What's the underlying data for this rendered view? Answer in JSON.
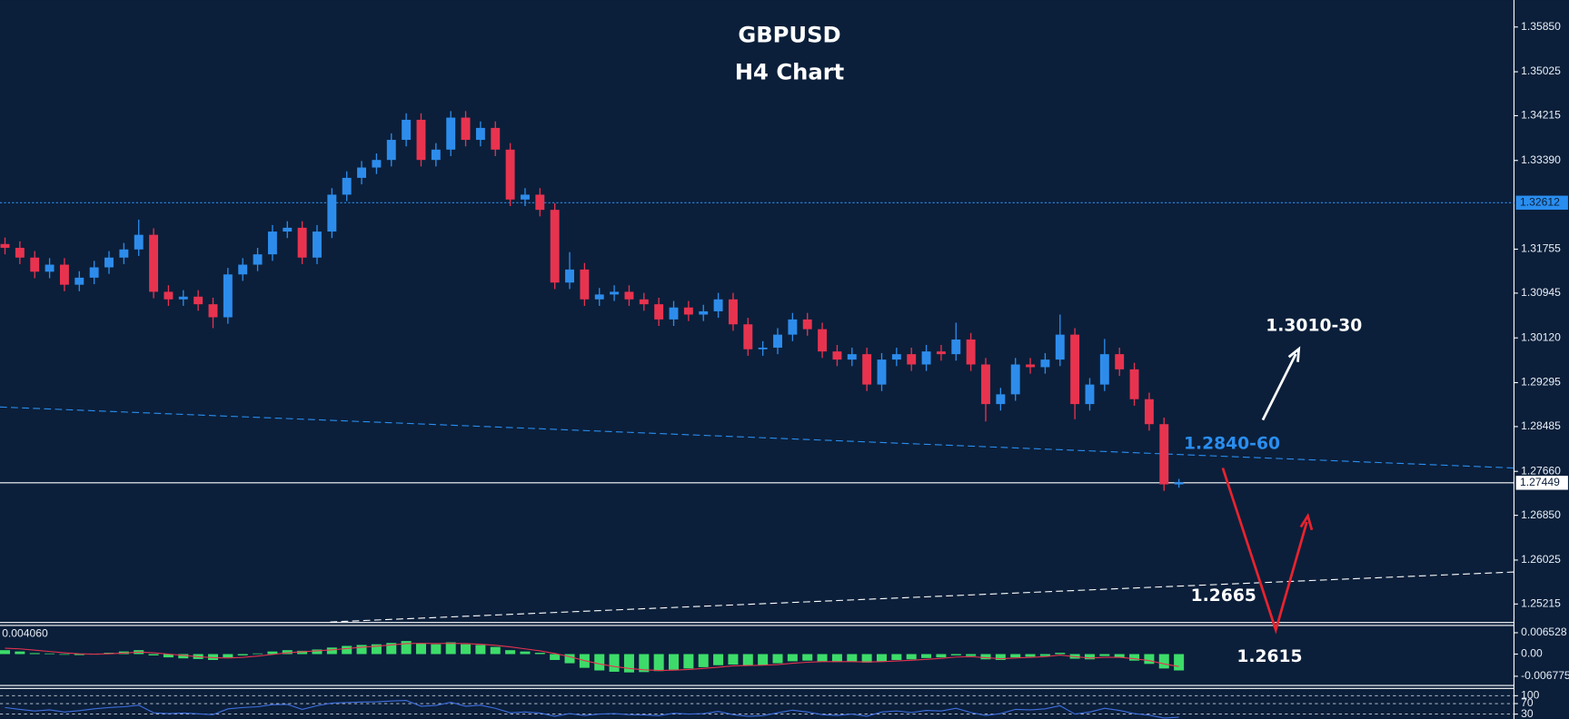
{
  "chart_data": [
    {
      "type": "candlestick",
      "title": "GBPUSD",
      "subtitle": "H4 Chart",
      "open": [
        1.3185,
        1.3178,
        1.316,
        1.3134,
        1.3147,
        1.311,
        1.3123,
        1.3142,
        1.316,
        1.3175,
        1.3202,
        1.3097,
        1.3083,
        1.3088,
        1.3074,
        1.305,
        1.3129,
        1.3147,
        1.3166,
        1.3208,
        1.3215,
        1.316,
        1.3208,
        1.3276,
        1.3307,
        1.3326,
        1.334,
        1.3377,
        1.3414,
        1.334,
        1.3359,
        1.3418,
        1.3377,
        1.3399,
        1.3359,
        1.3267,
        1.3276,
        1.3248,
        1.3114,
        1.3138,
        1.3083,
        1.3092,
        1.3097,
        1.3083,
        1.3074,
        1.3046,
        1.3068,
        1.3055,
        1.3061,
        1.3083,
        1.3037,
        1.2991,
        1.2994,
        1.3018,
        1.3046,
        1.3028,
        1.2987,
        1.2972,
        1.2982,
        1.2926,
        1.2972,
        1.2982,
        1.2963,
        1.2987,
        1.2982,
        1.3009,
        1.2963,
        1.289,
        1.2908,
        1.2963,
        1.2958,
        1.2972,
        1.3018,
        1.289,
        1.2926,
        1.2982,
        1.2954,
        1.2899,
        1.2853,
        1.2742
      ],
      "high": [
        1.3197,
        1.319,
        1.3172,
        1.3159,
        1.3159,
        1.3135,
        1.3154,
        1.3172,
        1.3187,
        1.323,
        1.3214,
        1.3109,
        1.31,
        1.31,
        1.3086,
        1.3141,
        1.3159,
        1.3178,
        1.322,
        1.3227,
        1.3227,
        1.322,
        1.3288,
        1.3319,
        1.3338,
        1.3352,
        1.3389,
        1.3426,
        1.3426,
        1.3371,
        1.343,
        1.343,
        1.3411,
        1.3411,
        1.3371,
        1.3288,
        1.3288,
        1.326,
        1.317,
        1.315,
        1.3104,
        1.3109,
        1.3109,
        1.3095,
        1.3086,
        1.308,
        1.308,
        1.3073,
        1.3095,
        1.3095,
        1.3049,
        1.3006,
        1.303,
        1.3058,
        1.3058,
        1.304,
        1.2999,
        1.2994,
        1.2994,
        1.2984,
        1.2994,
        1.2994,
        1.2999,
        1.2999,
        1.304,
        1.3021,
        1.2975,
        1.292,
        1.2975,
        1.2975,
        1.2984,
        1.3055,
        1.303,
        1.2938,
        1.301,
        1.2994,
        1.2966,
        1.2911,
        1.2865,
        1.2752
      ],
      "low": [
        1.3166,
        1.3148,
        1.3122,
        1.3122,
        1.3098,
        1.3098,
        1.3111,
        1.313,
        1.3148,
        1.3163,
        1.3085,
        1.3071,
        1.3071,
        1.3062,
        1.303,
        1.3038,
        1.3117,
        1.3135,
        1.3154,
        1.3196,
        1.3148,
        1.3148,
        1.3196,
        1.3264,
        1.3295,
        1.3314,
        1.3328,
        1.3365,
        1.3328,
        1.3328,
        1.3347,
        1.3365,
        1.3365,
        1.3347,
        1.3255,
        1.3255,
        1.3236,
        1.3102,
        1.3102,
        1.3071,
        1.3071,
        1.308,
        1.3071,
        1.3062,
        1.3034,
        1.3034,
        1.3043,
        1.3043,
        1.3049,
        1.3025,
        1.2979,
        1.2979,
        1.2982,
        1.3006,
        1.3016,
        1.2975,
        1.296,
        1.296,
        1.2914,
        1.2914,
        1.296,
        1.2951,
        1.2951,
        1.297,
        1.297,
        1.2951,
        1.2858,
        1.2878,
        1.2896,
        1.2946,
        1.2946,
        1.296,
        1.2862,
        1.2878,
        1.2914,
        1.2942,
        1.2887,
        1.2841,
        1.273,
        1.2736
      ],
      "close": [
        1.3178,
        1.316,
        1.3134,
        1.3147,
        1.311,
        1.3123,
        1.3142,
        1.316,
        1.3175,
        1.3202,
        1.3097,
        1.3083,
        1.3088,
        1.3074,
        1.305,
        1.3129,
        1.3147,
        1.3166,
        1.3208,
        1.3215,
        1.316,
        1.3208,
        1.3276,
        1.3307,
        1.3326,
        1.334,
        1.3377,
        1.3414,
        1.334,
        1.3359,
        1.3418,
        1.3377,
        1.3399,
        1.3359,
        1.3267,
        1.3276,
        1.3248,
        1.3114,
        1.3138,
        1.3083,
        1.3092,
        1.3097,
        1.3083,
        1.3074,
        1.3046,
        1.3068,
        1.3055,
        1.3061,
        1.3083,
        1.3037,
        1.2991,
        1.2994,
        1.3018,
        1.3046,
        1.3028,
        1.2987,
        1.2972,
        1.2982,
        1.2926,
        1.2972,
        1.2982,
        1.2963,
        1.2987,
        1.2982,
        1.3009,
        1.2963,
        1.289,
        1.2908,
        1.2963,
        1.2958,
        1.2972,
        1.3018,
        1.289,
        1.2926,
        1.2982,
        1.2954,
        1.2899,
        1.2853,
        1.2742,
        1.2746
      ],
      "up_color": "#2d8ceb",
      "down_color": "#e8334f",
      "ylim": [
        1.24884,
        1.36347
      ],
      "yticks": [
        {
          "value": 1.3585,
          "label": "1.35850"
        },
        1.35025,
        1.34215,
        {
          "value": 1.3339,
          "label": "1.33390"
        },
        1.31755,
        1.30945,
        {
          "value": 1.3012,
          "label": "1.30120"
        },
        1.29295,
        1.28485,
        {
          "value": 1.2766,
          "label": "1.27660"
        },
        {
          "value": 1.2685,
          "label": "1.26850"
        },
        1.26025,
        1.25215
      ],
      "levels": [
        {
          "value": 1.32612,
          "color": "#2a8ef0"
        },
        {
          "value": 1.27449,
          "color": "#ffffff"
        }
      ],
      "annotations": [
        {
          "text": "1.3010-30",
          "color": "#ffffff"
        },
        {
          "text": "1.2840-60",
          "color": "#2a8ef0"
        },
        {
          "text": "1.2665",
          "color": "#ffffff"
        },
        {
          "text": "1.2615",
          "color": "#ffffff"
        }
      ]
    },
    {
      "type": "macd",
      "readout": "0.004060",
      "histogram": {
        "color": "#3ddc6a",
        "values": [
          0.0012,
          0.0008,
          0.0003,
          0.0002,
          -0.0002,
          -0.0003,
          0.0,
          0.0004,
          0.0008,
          0.0012,
          -0.0004,
          -0.001,
          -0.0013,
          -0.0015,
          -0.0018,
          -0.001,
          -0.0004,
          0.0002,
          0.0008,
          0.0012,
          0.001,
          0.0014,
          0.002,
          0.0025,
          0.0028,
          0.003,
          0.0034,
          0.004,
          0.0032,
          0.003,
          0.0036,
          0.003,
          0.0028,
          0.0022,
          0.0012,
          0.0008,
          0.0004,
          -0.0018,
          -0.0028,
          -0.0042,
          -0.005,
          -0.0054,
          -0.0056,
          -0.0055,
          -0.0052,
          -0.0048,
          -0.0044,
          -0.004,
          -0.0034,
          -0.0032,
          -0.0036,
          -0.0034,
          -0.0028,
          -0.0022,
          -0.002,
          -0.0022,
          -0.0024,
          -0.0022,
          -0.0026,
          -0.0022,
          -0.0018,
          -0.0016,
          -0.0012,
          -0.001,
          -0.0004,
          -0.0006,
          -0.0016,
          -0.0018,
          -0.001,
          -0.0008,
          -0.0006,
          0.0004,
          -0.0014,
          -0.0016,
          -0.0006,
          -0.001,
          -0.002,
          -0.003,
          -0.0044,
          -0.005
        ]
      },
      "signal": {
        "color": "#e8334f",
        "values": [
          0.0018,
          0.0016,
          0.0012,
          0.0008,
          0.0004,
          0.0001,
          0.0,
          0.0001,
          0.0003,
          0.0006,
          0.0004,
          0.0,
          -0.0004,
          -0.0008,
          -0.0011,
          -0.0012,
          -0.001,
          -0.0006,
          -0.0001,
          0.0004,
          0.0007,
          0.001,
          0.0013,
          0.0017,
          0.0021,
          0.0024,
          0.0028,
          0.0032,
          0.0033,
          0.0032,
          0.0033,
          0.0032,
          0.003,
          0.0027,
          0.0022,
          0.0016,
          0.001,
          0.0002,
          -0.0008,
          -0.002,
          -0.003,
          -0.0038,
          -0.0044,
          -0.0048,
          -0.005,
          -0.0049,
          -0.0047,
          -0.0044,
          -0.004,
          -0.0036,
          -0.0035,
          -0.0034,
          -0.0032,
          -0.0028,
          -0.0025,
          -0.0023,
          -0.0023,
          -0.0023,
          -0.0024,
          -0.0023,
          -0.0021,
          -0.0019,
          -0.0016,
          -0.0013,
          -0.0009,
          -0.0008,
          -0.0011,
          -0.0014,
          -0.0012,
          -0.001,
          -0.0008,
          -0.0003,
          -0.0008,
          -0.0012,
          -0.001,
          -0.001,
          -0.0014,
          -0.002,
          -0.003,
          -0.0038
        ]
      },
      "ylim": [
        -0.00944,
        0.0086
      ],
      "yticks": [
        0.006528,
        {
          "value": 0,
          "label": "0.00"
        },
        -0.006775
      ]
    },
    {
      "type": "line",
      "color": "#3f6fe0",
      "values": [
        55,
        48,
        42,
        46,
        38,
        43,
        50,
        55,
        58,
        64,
        35,
        32,
        34,
        31,
        28,
        50,
        55,
        58,
        66,
        67,
        48,
        62,
        72,
        74,
        76,
        77,
        80,
        82,
        60,
        63,
        75,
        60,
        64,
        52,
        35,
        38,
        34,
        22,
        32,
        25,
        30,
        32,
        28,
        27,
        24,
        33,
        30,
        32,
        40,
        28,
        22,
        24,
        35,
        45,
        38,
        28,
        25,
        30,
        22,
        38,
        42,
        36,
        44,
        42,
        52,
        36,
        25,
        32,
        48,
        46,
        50,
        62,
        30,
        38,
        52,
        44,
        32,
        26,
        15,
        18
      ],
      "ylim": [
        11.5,
        125.8
      ],
      "yticks": [
        100,
        70,
        30
      ]
    }
  ]
}
